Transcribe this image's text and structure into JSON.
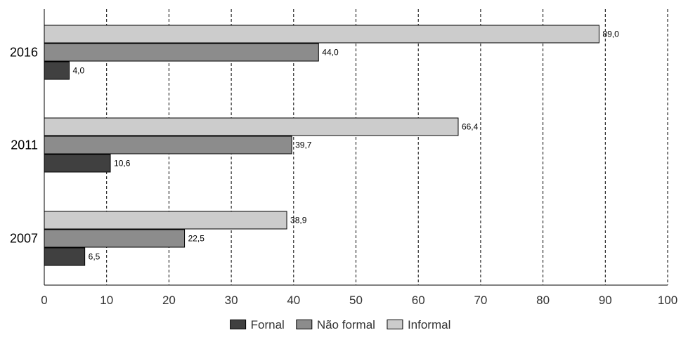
{
  "chart_data": {
    "type": "bar",
    "orientation": "horizontal",
    "title": "",
    "xlabel": "",
    "ylabel": "",
    "categories": [
      "2016",
      "2011",
      "2007"
    ],
    "series": [
      {
        "name": "Informal",
        "values": [
          89.0,
          66.4,
          38.9
        ],
        "labels": [
          "89,0",
          "66,4",
          "38,9"
        ],
        "color": "#cccccc"
      },
      {
        "name": "Não formal",
        "values": [
          44.0,
          39.7,
          22.5
        ],
        "labels": [
          "44,0",
          "39,7",
          "22,5"
        ],
        "color": "#8c8c8c"
      },
      {
        "name": "Fornal",
        "values": [
          4.0,
          10.6,
          6.5
        ],
        "labels": [
          "4,0",
          "10,6",
          "6,5"
        ],
        "color": "#404040"
      }
    ],
    "xlim": [
      0,
      100
    ],
    "xticks": [
      0,
      10,
      20,
      30,
      40,
      50,
      60,
      70,
      80,
      90,
      100
    ],
    "xtick_labels": [
      "0",
      "10",
      "20",
      "30",
      "40",
      "50",
      "60",
      "70",
      "80",
      "90",
      "100"
    ],
    "vertical_gridlines": "dashed",
    "legend": {
      "position": "bottom-center",
      "order": [
        "Fornal",
        "Não formal",
        "Informal"
      ]
    },
    "colors": {
      "bar_stroke": "#000000",
      "axis": "#000000",
      "grid": "#000000",
      "text": "#000000"
    }
  }
}
